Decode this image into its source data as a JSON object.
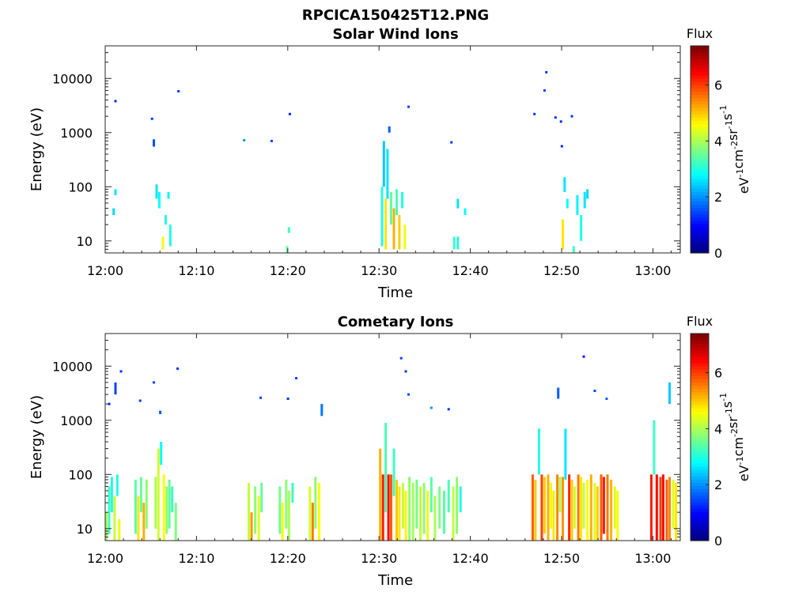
{
  "figure_title": "RPCICA150425T12.PNG",
  "chart_data": [
    {
      "type": "heatmap",
      "title": "Solar Wind Ions",
      "xlabel": "Time",
      "ylabel": "Energy (eV)",
      "x_tick_labels": [
        "12:00",
        "12:10",
        "12:20",
        "12:30",
        "12:40",
        "12:50",
        "13:00"
      ],
      "x_range_minutes": [
        0,
        63
      ],
      "y_scale": "log",
      "y_range": [
        6,
        40000
      ],
      "y_tick_values": [
        10,
        100,
        1000,
        10000
      ],
      "y_tick_labels": [
        "10",
        "100",
        "1000",
        "10000"
      ],
      "colorbar": {
        "title": "Flux",
        "unit": "eV⁻¹cm⁻²sr⁻¹s⁻¹",
        "unit_parts": [
          "eV",
          "-1",
          "cm",
          "-2",
          "sr",
          "-1",
          "s",
          "-1"
        ],
        "range": [
          0,
          7.4
        ],
        "ticks": [
          0,
          2,
          4,
          6
        ],
        "tick_labels": [
          "0",
          "2",
          "4",
          "6"
        ]
      },
      "colormap": "jet",
      "cells": [
        [
          0.8,
          30,
          40,
          2.5
        ],
        [
          1.0,
          70,
          90,
          2.6
        ],
        [
          1.0,
          3800,
          3800,
          1.2
        ],
        [
          5.0,
          1800,
          1800,
          1.4
        ],
        [
          5.2,
          550,
          750,
          1.5
        ],
        [
          5.5,
          60,
          110,
          2.6
        ],
        [
          5.8,
          40,
          80,
          2.8
        ],
        [
          6.2,
          7,
          12,
          4.5
        ],
        [
          6.5,
          20,
          30,
          3.0
        ],
        [
          6.8,
          60,
          80,
          2.7
        ],
        [
          7.0,
          8,
          20,
          3.0
        ],
        [
          7.9,
          5800,
          5800,
          1.3
        ],
        [
          15.1,
          720,
          720,
          2.0
        ],
        [
          18.1,
          700,
          700,
          1.4
        ],
        [
          19.8,
          6,
          8,
          3.5
        ],
        [
          20.0,
          14,
          18,
          3.2
        ],
        [
          20.1,
          2200,
          2200,
          1.2
        ],
        [
          30.2,
          8,
          100,
          3.0
        ],
        [
          30.4,
          100,
          700,
          2.4
        ],
        [
          30.6,
          7,
          60,
          4.8
        ],
        [
          30.8,
          60,
          500,
          2.6
        ],
        [
          31.0,
          1000,
          1300,
          1.6
        ],
        [
          31.2,
          20,
          80,
          3.5
        ],
        [
          31.5,
          7,
          40,
          5.2
        ],
        [
          31.8,
          30,
          90,
          3.3
        ],
        [
          32.1,
          7,
          30,
          5.0
        ],
        [
          32.4,
          40,
          80,
          3.0
        ],
        [
          32.7,
          7,
          20,
          4.5
        ],
        [
          33.1,
          3000,
          3000,
          1.4
        ],
        [
          37.8,
          660,
          660,
          1.3
        ],
        [
          38.1,
          7,
          12,
          3.2
        ],
        [
          38.5,
          7,
          12,
          3.0
        ],
        [
          38.5,
          40,
          60,
          2.6
        ],
        [
          39.3,
          30,
          40,
          2.8
        ],
        [
          46.9,
          2200,
          2200,
          1.3
        ],
        [
          48.0,
          6000,
          6000,
          1.4
        ],
        [
          48.2,
          13000,
          13000,
          1.3
        ],
        [
          49.2,
          1900,
          1900,
          1.3
        ],
        [
          49.8,
          1600,
          1600,
          1.2
        ],
        [
          49.9,
          560,
          560,
          1.2
        ],
        [
          50.0,
          7,
          25,
          4.8
        ],
        [
          50.2,
          80,
          150,
          2.6
        ],
        [
          50.5,
          40,
          60,
          2.8
        ],
        [
          51.0,
          2000,
          2000,
          1.3
        ],
        [
          51.2,
          6,
          8,
          3.2
        ],
        [
          51.6,
          30,
          70,
          2.7
        ],
        [
          52.0,
          10,
          30,
          3.0
        ],
        [
          52.4,
          40,
          80,
          2.6
        ],
        [
          52.7,
          60,
          90,
          2.5
        ]
      ]
    },
    {
      "type": "heatmap",
      "title": "Cometary Ions",
      "xlabel": "Time",
      "ylabel": "Energy (eV)",
      "x_tick_labels": [
        "12:00",
        "12:10",
        "12:20",
        "12:30",
        "12:40",
        "12:50",
        "13:00"
      ],
      "x_range_minutes": [
        0,
        63
      ],
      "y_scale": "log",
      "y_range": [
        6,
        40000
      ],
      "y_tick_values": [
        10,
        100,
        1000,
        10000
      ],
      "y_tick_labels": [
        "10",
        "100",
        "1000",
        "10000"
      ],
      "colorbar": {
        "title": "Flux",
        "unit": "eV⁻¹cm⁻²sr⁻¹s⁻¹",
        "unit_parts": [
          "eV",
          "-1",
          "cm",
          "-2",
          "sr",
          "-1",
          "s",
          "-1"
        ],
        "range": [
          0,
          7.4
        ],
        "ticks": [
          0,
          2,
          4,
          6
        ],
        "tick_labels": [
          "0",
          "2",
          "4",
          "6"
        ]
      },
      "colormap": "jet",
      "cells": [
        [
          0.0,
          6,
          20,
          4.0
        ],
        [
          0.3,
          8,
          60,
          3.2
        ],
        [
          0.6,
          20,
          90,
          3.0
        ],
        [
          0.9,
          6,
          40,
          4.2
        ],
        [
          1.2,
          40,
          100,
          3.0
        ],
        [
          1.4,
          6,
          15,
          4.5
        ],
        [
          0.3,
          2000,
          2000,
          1.2
        ],
        [
          1.0,
          3000,
          5000,
          1.4
        ],
        [
          1.6,
          8000,
          8000,
          1.3
        ],
        [
          3.2,
          8,
          80,
          3.4
        ],
        [
          3.5,
          6,
          40,
          4.8
        ],
        [
          3.8,
          20,
          90,
          3.5
        ],
        [
          4.1,
          6,
          30,
          5.2
        ],
        [
          4.4,
          10,
          80,
          3.8
        ],
        [
          3.7,
          2300,
          2300,
          1.3
        ],
        [
          5.2,
          5000,
          5000,
          1.4
        ],
        [
          5.4,
          10,
          90,
          4.0
        ],
        [
          5.7,
          6,
          300,
          4.3
        ],
        [
          6.0,
          150,
          400,
          2.8
        ],
        [
          6.3,
          6,
          100,
          4.6
        ],
        [
          6.6,
          8,
          60,
          3.8
        ],
        [
          6.9,
          10,
          80,
          3.5
        ],
        [
          7.2,
          20,
          60,
          3.2
        ],
        [
          7.6,
          6,
          30,
          3.7
        ],
        [
          5.9,
          1300,
          1500,
          1.6
        ],
        [
          7.8,
          9000,
          9000,
          1.3
        ],
        [
          15.6,
          6,
          70,
          4.2
        ],
        [
          15.9,
          6,
          20,
          5.4
        ],
        [
          16.3,
          8,
          60,
          3.8
        ],
        [
          16.7,
          6,
          40,
          4.4
        ],
        [
          17.0,
          20,
          70,
          3.5
        ],
        [
          16.9,
          2600,
          2600,
          1.4
        ],
        [
          19.0,
          8,
          60,
          3.6
        ],
        [
          19.3,
          6,
          30,
          4.5
        ],
        [
          19.7,
          10,
          80,
          3.8
        ],
        [
          20.0,
          6,
          50,
          4.0
        ],
        [
          20.4,
          30,
          70,
          3.2
        ],
        [
          19.9,
          2500,
          2500,
          1.3
        ],
        [
          20.8,
          6000,
          6000,
          1.4
        ],
        [
          22.3,
          6,
          60,
          4.3
        ],
        [
          22.6,
          6,
          30,
          5.6
        ],
        [
          22.9,
          10,
          90,
          3.8
        ],
        [
          23.3,
          6,
          70,
          4.6
        ],
        [
          23.6,
          1200,
          2000,
          1.8
        ],
        [
          30.0,
          6,
          300,
          5.2
        ],
        [
          30.3,
          6,
          100,
          6.3
        ],
        [
          30.6,
          20,
          900,
          3.3
        ],
        [
          30.9,
          6,
          100,
          6.5
        ],
        [
          31.2,
          6,
          100,
          5.8
        ],
        [
          31.5,
          40,
          300,
          3.2
        ],
        [
          31.8,
          6,
          80,
          5.0
        ],
        [
          32.1,
          6,
          60,
          4.8
        ],
        [
          32.5,
          10,
          70,
          4.2
        ],
        [
          32.8,
          6,
          50,
          4.7
        ],
        [
          33.2,
          6,
          90,
          3.8
        ],
        [
          33.6,
          6,
          70,
          4.0
        ],
        [
          34.0,
          10,
          80,
          3.6
        ],
        [
          34.4,
          6,
          60,
          4.2
        ],
        [
          34.8,
          8,
          70,
          3.8
        ],
        [
          35.2,
          6,
          50,
          4.5
        ],
        [
          35.6,
          20,
          90,
          3.4
        ],
        [
          36.0,
          6,
          40,
          4.0
        ],
        [
          36.5,
          10,
          60,
          3.7
        ],
        [
          37.0,
          8,
          50,
          3.4
        ],
        [
          37.5,
          20,
          80,
          3.3
        ],
        [
          38.0,
          6,
          60,
          4.2
        ],
        [
          38.4,
          8,
          90,
          3.8
        ],
        [
          38.8,
          20,
          60,
          3.0
        ],
        [
          32.3,
          14000,
          14000,
          1.4
        ],
        [
          32.8,
          8000,
          8000,
          1.3
        ],
        [
          33.1,
          3000,
          3000,
          1.5
        ],
        [
          35.6,
          1700,
          1700,
          2.0
        ],
        [
          37.5,
          1600,
          1600,
          1.3
        ],
        [
          46.7,
          6,
          100,
          5.8
        ],
        [
          47.0,
          6,
          80,
          5.0
        ],
        [
          47.4,
          100,
          700,
          3.0
        ],
        [
          47.7,
          6,
          100,
          6.0
        ],
        [
          48.0,
          8,
          90,
          5.0
        ],
        [
          48.4,
          6,
          100,
          5.2
        ],
        [
          48.7,
          10,
          70,
          4.5
        ],
        [
          49.0,
          6,
          50,
          4.8
        ],
        [
          49.4,
          6,
          100,
          5.5
        ],
        [
          49.7,
          20,
          90,
          4.0
        ],
        [
          50.0,
          6,
          90,
          5.4
        ],
        [
          50.3,
          80,
          700,
          2.6
        ],
        [
          50.7,
          6,
          100,
          6.2
        ],
        [
          51.0,
          6,
          80,
          5.0
        ],
        [
          51.3,
          10,
          60,
          4.3
        ],
        [
          51.7,
          6,
          100,
          5.6
        ],
        [
          52.0,
          6,
          90,
          4.8
        ],
        [
          52.3,
          10,
          70,
          4.2
        ],
        [
          52.7,
          6,
          80,
          4.6
        ],
        [
          53.1,
          6,
          100,
          5.2
        ],
        [
          53.5,
          6,
          70,
          4.4
        ],
        [
          53.8,
          6,
          60,
          5.0
        ],
        [
          54.2,
          6,
          100,
          5.8
        ],
        [
          54.5,
          8,
          90,
          6.3
        ],
        [
          54.9,
          6,
          100,
          5.6
        ],
        [
          55.3,
          6,
          80,
          5.2
        ],
        [
          55.7,
          10,
          60,
          4.4
        ],
        [
          56.0,
          6,
          50,
          4.6
        ],
        [
          49.5,
          2500,
          4000,
          1.6
        ],
        [
          52.3,
          15000,
          15000,
          1.1
        ],
        [
          53.5,
          3500,
          3500,
          1.4
        ],
        [
          54.8,
          2500,
          2500,
          1.6
        ],
        [
          59.7,
          6,
          100,
          6.3
        ],
        [
          60.0,
          100,
          1000,
          3.2
        ],
        [
          60.3,
          6,
          100,
          6.5
        ],
        [
          60.7,
          6,
          90,
          6.0
        ],
        [
          61.0,
          6,
          100,
          6.4
        ],
        [
          61.4,
          6,
          80,
          5.8
        ],
        [
          61.7,
          6,
          90,
          5.5
        ],
        [
          62.1,
          10,
          80,
          4.4
        ],
        [
          62.4,
          6,
          70,
          4.8
        ],
        [
          61.7,
          2000,
          5000,
          2.4
        ]
      ]
    }
  ]
}
